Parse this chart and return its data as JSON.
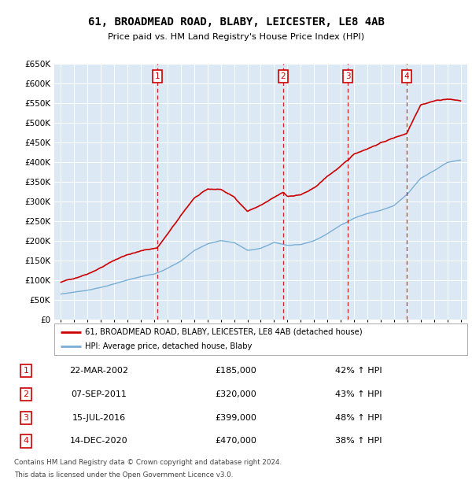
{
  "title": "61, BROADMEAD ROAD, BLABY, LEICESTER, LE8 4AB",
  "subtitle": "Price paid vs. HM Land Registry's House Price Index (HPI)",
  "bg_color": "#dce9f5",
  "ylim": [
    0,
    650000
  ],
  "yticks": [
    0,
    50000,
    100000,
    150000,
    200000,
    250000,
    300000,
    350000,
    400000,
    450000,
    500000,
    550000,
    600000,
    650000
  ],
  "ytick_labels": [
    "£0",
    "£50K",
    "£100K",
    "£150K",
    "£200K",
    "£250K",
    "£300K",
    "£350K",
    "£400K",
    "£450K",
    "£500K",
    "£550K",
    "£600K",
    "£650K"
  ],
  "xlim_start": 1994.5,
  "xlim_end": 2025.5,
  "sales": [
    {
      "num": 1,
      "year": 2002.22,
      "price": 185000,
      "date": "22-MAR-2002",
      "pct": "42%",
      "dir": "↑"
    },
    {
      "num": 2,
      "year": 2011.68,
      "price": 320000,
      "date": "07-SEP-2011",
      "pct": "43%",
      "dir": "↑"
    },
    {
      "num": 3,
      "year": 2016.54,
      "price": 399000,
      "date": "15-JUL-2016",
      "pct": "48%",
      "dir": "↑"
    },
    {
      "num": 4,
      "year": 2020.96,
      "price": 470000,
      "date": "14-DEC-2020",
      "pct": "38%",
      "dir": "↑"
    }
  ],
  "legend_label_red": "61, BROADMEAD ROAD, BLABY, LEICESTER, LE8 4AB (detached house)",
  "legend_label_blue": "HPI: Average price, detached house, Blaby",
  "footer1": "Contains HM Land Registry data © Crown copyright and database right 2024.",
  "footer2": "This data is licensed under the Open Government Licence v3.0.",
  "red_color": "#cc0000",
  "blue_color": "#7aaed4",
  "red_anchors_x": [
    1995.0,
    1996.0,
    1997.0,
    1998.0,
    1999.0,
    2000.0,
    2001.0,
    2002.22,
    2003.0,
    2004.0,
    2005.0,
    2006.0,
    2007.0,
    2008.0,
    2009.0,
    2010.0,
    2011.68,
    2012.0,
    2013.0,
    2014.0,
    2015.0,
    2016.54,
    2017.0,
    2018.0,
    2019.0,
    2020.96,
    2021.5,
    2022.0,
    2023.0,
    2024.0,
    2025.0
  ],
  "red_anchors_y": [
    95000,
    105000,
    118000,
    135000,
    153000,
    168000,
    177000,
    185000,
    220000,
    265000,
    310000,
    330000,
    330000,
    310000,
    275000,
    290000,
    320000,
    310000,
    315000,
    330000,
    360000,
    399000,
    415000,
    430000,
    445000,
    470000,
    510000,
    545000,
    555000,
    560000,
    555000
  ],
  "blue_anchors_x": [
    1995.0,
    1996.0,
    1997.0,
    1998.0,
    1999.0,
    2000.0,
    2001.0,
    2002.0,
    2003.0,
    2004.0,
    2005.0,
    2006.0,
    2007.0,
    2008.0,
    2009.0,
    2010.0,
    2011.0,
    2012.0,
    2013.0,
    2014.0,
    2015.0,
    2016.0,
    2017.0,
    2018.0,
    2019.0,
    2020.0,
    2021.0,
    2022.0,
    2023.0,
    2024.0,
    2025.0
  ],
  "blue_anchors_y": [
    65000,
    70000,
    75000,
    82000,
    91000,
    100000,
    108000,
    115000,
    130000,
    148000,
    175000,
    192000,
    200000,
    195000,
    175000,
    180000,
    195000,
    188000,
    190000,
    200000,
    218000,
    240000,
    258000,
    270000,
    278000,
    290000,
    320000,
    360000,
    380000,
    400000,
    405000
  ]
}
